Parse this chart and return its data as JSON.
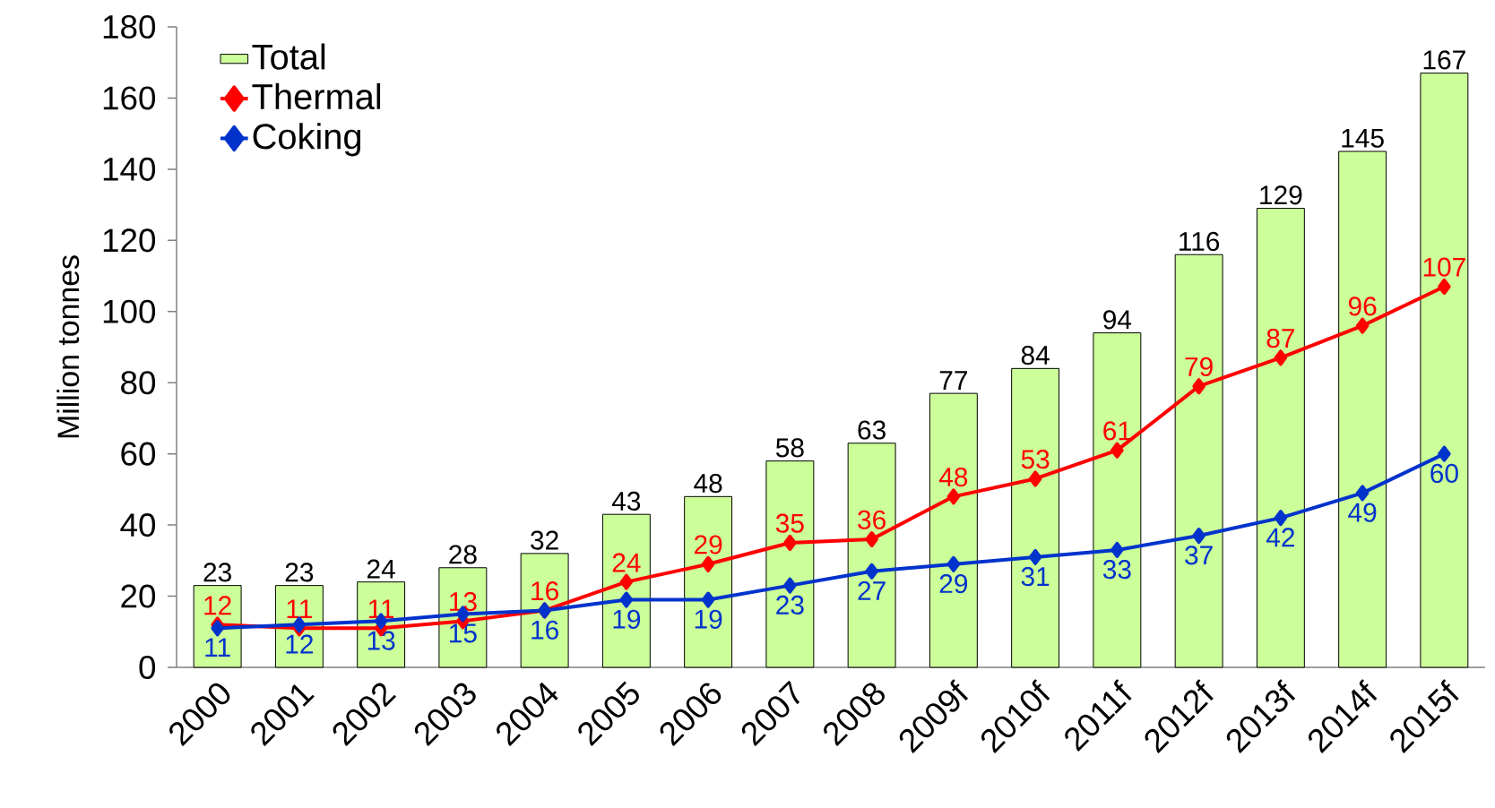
{
  "chart_data": {
    "type": "bar",
    "ylabel": "Million tonnes",
    "categories": [
      "2000",
      "2001",
      "2002",
      "2003",
      "2004",
      "2005",
      "2006",
      "2007",
      "2008",
      "2009f",
      "2010f",
      "2011f",
      "2012f",
      "2013f",
      "2014f",
      "2015f"
    ],
    "series": [
      {
        "name": "Total",
        "color": "#ccff99",
        "values": [
          23,
          23,
          24,
          28,
          32,
          43,
          48,
          58,
          63,
          77,
          84,
          94,
          116,
          129,
          145,
          167
        ]
      },
      {
        "name": "Thermal",
        "type": "line",
        "color": "#ff0000",
        "values": [
          12,
          11,
          11,
          13,
          16,
          24,
          29,
          35,
          36,
          48,
          53,
          61,
          79,
          87,
          96,
          107
        ]
      },
      {
        "name": "Coking",
        "type": "line",
        "color": "#0033cc",
        "values": [
          11,
          12,
          13,
          15,
          16,
          19,
          19,
          23,
          27,
          29,
          31,
          33,
          37,
          42,
          49,
          60
        ]
      }
    ],
    "ylim": [
      0,
      180
    ],
    "yticks": [
      0,
      20,
      40,
      60,
      80,
      100,
      120,
      140,
      160,
      180
    ],
    "data_labels": true,
    "legend": "top left",
    "marker": "diamond",
    "grid": false
  }
}
